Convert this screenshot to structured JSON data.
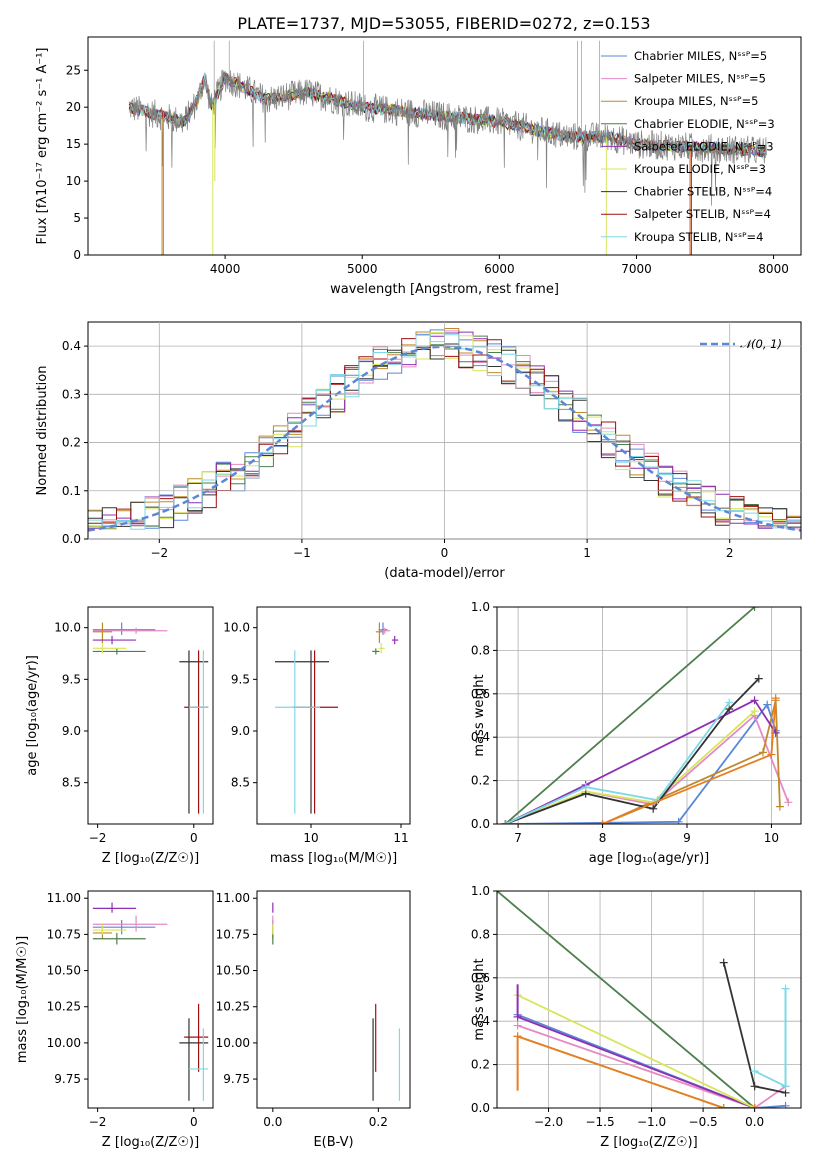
{
  "chart_data": [
    {
      "type": "line",
      "title": "PLATE=1737, MJD=53055, FIBERID=0272, z=0.153",
      "xlabel": "wavelength [Angstrom, rest frame]",
      "ylabel": "Flux [fλ10⁻¹⁷ erg cm⁻² s⁻¹ A⁻¹]",
      "xlim": [
        3000,
        8200
      ],
      "ylim": [
        0,
        29.5
      ],
      "xticks": [
        "4000",
        "5000",
        "6000",
        "7000",
        "8000"
      ],
      "yticks": [
        "0",
        "5",
        "10",
        "15",
        "20",
        "25"
      ],
      "legend_position": "upper right",
      "series": [
        {
          "name": "Chabrier MILES, N_SSP=5",
          "color": "#5b87d9"
        },
        {
          "name": "Salpeter MILES, N_SSP=5",
          "color": "#e58ac4"
        },
        {
          "name": "Kroupa MILES, N_SSP=5",
          "color": "#c08a2c"
        },
        {
          "name": "Chabrier ELODIE, N_SSP=3",
          "color": "#4e7f4e"
        },
        {
          "name": "Salpeter ELODIE, N_SSP=3",
          "color": "#8e2fb3"
        },
        {
          "name": "Kroupa ELODIE, N_SSP=3",
          "color": "#d7e65a"
        },
        {
          "name": "Chabrier STELIB, N_SSP=4",
          "color": "#333333"
        },
        {
          "name": "Salpeter STELIB, N_SSP=4",
          "color": "#a01010"
        },
        {
          "name": "Kroupa STELIB, N_SSP=4",
          "color": "#7fd8e6"
        }
      ],
      "data_color": "#808080",
      "spectrum_knots": [
        [
          3300,
          20
        ],
        [
          3500,
          19
        ],
        [
          3700,
          18
        ],
        [
          3800,
          21
        ],
        [
          3850,
          24
        ],
        [
          3900,
          20
        ],
        [
          4000,
          24
        ],
        [
          4300,
          21
        ],
        [
          4600,
          22
        ],
        [
          5000,
          20
        ],
        [
          5500,
          19
        ],
        [
          6000,
          18
        ],
        [
          6500,
          16
        ],
        [
          6800,
          16
        ],
        [
          7000,
          15
        ],
        [
          7500,
          14.5
        ],
        [
          8000,
          14
        ]
      ]
    },
    {
      "type": "line",
      "xlabel": "(data-model)/error",
      "ylabel": "Normed distribution",
      "xlim": [
        -2.5,
        2.5
      ],
      "ylim": [
        0,
        0.45
      ],
      "xticks": [
        "−2",
        "−1",
        "0",
        "1",
        "2"
      ],
      "yticks": [
        "0.0",
        "0.1",
        "0.2",
        "0.3",
        "0.4"
      ],
      "grid": true,
      "legend": "𝒩(0, 1)",
      "legend_position": "upper right",
      "gaussian_color": "#5b87d9",
      "bin_width": 0.1
    },
    {
      "type": "scatter",
      "xlabel": "Z [log₁₀(Z/Z☉)]",
      "ylabel": "age  [log₁₀(age/yr)]",
      "xlim": [
        -2.2,
        0.4
      ],
      "ylim": [
        8.1,
        10.2
      ],
      "xticks": [
        "−2",
        "0"
      ],
      "yticks": [
        "8.5",
        "9.0",
        "9.5",
        "10.0"
      ],
      "points": [
        {
          "x": -1.5,
          "y": 9.98,
          "xlo": -2.1,
          "xhi": -0.8,
          "ylo": 9.93,
          "yhi": 10.05,
          "c": "#5b87d9"
        },
        {
          "x": -1.2,
          "y": 9.97,
          "xlo": -2.1,
          "xhi": -0.55,
          "ylo": 9.94,
          "yhi": 10.0,
          "c": "#e58ac4"
        },
        {
          "x": -1.9,
          "y": 9.96,
          "xlo": -2.1,
          "xhi": -1.7,
          "ylo": 9.85,
          "yhi": 10.05,
          "c": "#c08a2c"
        },
        {
          "x": -1.6,
          "y": 9.77,
          "xlo": -2.1,
          "xhi": -1.0,
          "ylo": 9.74,
          "yhi": 9.8,
          "c": "#4e7f4e"
        },
        {
          "x": -1.7,
          "y": 9.88,
          "xlo": -2.1,
          "xhi": -1.2,
          "ylo": 9.84,
          "yhi": 9.92,
          "c": "#8e2fb3"
        },
        {
          "x": -1.9,
          "y": 9.8,
          "xlo": -2.1,
          "xhi": -1.4,
          "ylo": 9.75,
          "yhi": 9.85,
          "c": "#d7e65a"
        },
        {
          "x": -0.1,
          "y": 9.67,
          "xlo": -0.3,
          "xhi": 0.3,
          "ylo": 8.2,
          "yhi": 9.78,
          "c": "#333333"
        },
        {
          "x": 0.1,
          "y": 9.23,
          "xlo": -0.2,
          "xhi": 0.3,
          "ylo": 8.2,
          "yhi": 9.78,
          "c": "#a01010"
        },
        {
          "x": 0.2,
          "y": 9.23,
          "xlo": -0.1,
          "xhi": 0.3,
          "ylo": 8.2,
          "yhi": 9.78,
          "c": "#7fd8e6"
        }
      ]
    },
    {
      "type": "scatter",
      "xlabel": "mass [log₁₀(M/M☉)]",
      "ylabel": "",
      "xlim": [
        9.4,
        11.1
      ],
      "ylim": [
        8.1,
        10.2
      ],
      "xticks": [
        "10",
        "11"
      ],
      "yticks": [
        "8.5",
        "9.0",
        "9.5",
        "10.0"
      ],
      "points": [
        {
          "x": 10.8,
          "y": 9.98,
          "xlo": 10.75,
          "xhi": 10.85,
          "ylo": 9.93,
          "yhi": 10.05,
          "c": "#5b87d9"
        },
        {
          "x": 10.82,
          "y": 9.97,
          "xlo": 10.77,
          "xhi": 10.88,
          "ylo": 9.94,
          "yhi": 10.0,
          "c": "#e58ac4"
        },
        {
          "x": 10.76,
          "y": 9.96,
          "xlo": 10.72,
          "xhi": 10.8,
          "ylo": 9.85,
          "yhi": 10.05,
          "c": "#c08a2c"
        },
        {
          "x": 10.72,
          "y": 9.77,
          "xlo": 10.68,
          "xhi": 10.76,
          "ylo": 9.74,
          "yhi": 9.8,
          "c": "#4e7f4e"
        },
        {
          "x": 10.93,
          "y": 9.88,
          "xlo": 10.9,
          "xhi": 10.97,
          "ylo": 9.84,
          "yhi": 9.92,
          "c": "#8e2fb3"
        },
        {
          "x": 10.78,
          "y": 9.8,
          "xlo": 10.75,
          "xhi": 10.82,
          "ylo": 9.75,
          "yhi": 9.85,
          "c": "#d7e65a"
        },
        {
          "x": 10.0,
          "y": 9.67,
          "xlo": 9.6,
          "xhi": 10.2,
          "ylo": 8.2,
          "yhi": 9.78,
          "c": "#333333"
        },
        {
          "x": 10.04,
          "y": 9.23,
          "xlo": 9.8,
          "xhi": 10.3,
          "ylo": 8.2,
          "yhi": 9.78,
          "c": "#a01010"
        },
        {
          "x": 9.82,
          "y": 9.23,
          "xlo": 9.6,
          "xhi": 10.1,
          "ylo": 8.2,
          "yhi": 9.78,
          "c": "#7fd8e6"
        }
      ]
    },
    {
      "type": "line",
      "xlabel": "age  [log₁₀(age/yr)]",
      "ylabel": "mass weight",
      "xlim": [
        6.75,
        10.35
      ],
      "ylim": [
        0,
        1.0
      ],
      "xticks": [
        "7",
        "8",
        "9",
        "10"
      ],
      "yticks": [
        "0.0",
        "0.2",
        "0.4",
        "0.6",
        "0.8",
        "1.0"
      ],
      "grid": true,
      "series": [
        {
          "c": "#4e7f4e",
          "x": [
            6.85,
            9.8
          ],
          "y": [
            0.0,
            1.0
          ]
        },
        {
          "c": "#5b87d9",
          "x": [
            6.85,
            8.9,
            9.95,
            10.05
          ],
          "y": [
            0.0,
            0.01,
            0.55,
            0.43
          ]
        },
        {
          "c": "#e58ac4",
          "x": [
            6.85,
            7.8,
            8.6,
            9.8,
            10.2
          ],
          "y": [
            0.0,
            0.15,
            0.09,
            0.5,
            0.1
          ]
        },
        {
          "c": "#c08a2c",
          "x": [
            6.85,
            8.0,
            9.9,
            10.05,
            10.1
          ],
          "y": [
            0.0,
            0.0,
            0.33,
            0.57,
            0.08
          ]
        },
        {
          "c": "#8e2fb3",
          "x": [
            6.85,
            7.8,
            9.8,
            10.05
          ],
          "y": [
            0.0,
            0.18,
            0.57,
            0.42
          ]
        },
        {
          "c": "#d7e65a",
          "x": [
            6.85,
            7.8,
            8.6,
            9.8
          ],
          "y": [
            0.0,
            0.15,
            0.1,
            0.52
          ]
        },
        {
          "c": "#333333",
          "x": [
            6.85,
            7.8,
            8.6,
            9.5,
            9.85
          ],
          "y": [
            0.0,
            0.14,
            0.07,
            0.53,
            0.67
          ]
        },
        {
          "c": "#7fd8e6",
          "x": [
            6.85,
            7.8,
            8.65,
            9.5
          ],
          "y": [
            0.0,
            0.17,
            0.11,
            0.56
          ]
        },
        {
          "c": "#e67e22",
          "x": [
            6.85,
            8.0,
            10.0,
            10.05
          ],
          "y": [
            0.0,
            0.0,
            0.32,
            0.58
          ]
        }
      ]
    },
    {
      "type": "scatter",
      "xlabel": "Z [log₁₀(Z/Z☉)]",
      "ylabel": "mass [log₁₀(M/M☉)]",
      "xlim": [
        -2.2,
        0.4
      ],
      "ylim": [
        9.55,
        11.05
      ],
      "xticks": [
        "−2",
        "0"
      ],
      "yticks": [
        "9.75",
        "10.00",
        "10.25",
        "10.50",
        "10.75",
        "11.00"
      ],
      "points": [
        {
          "x": -1.5,
          "y": 10.8,
          "xlo": -2.1,
          "xhi": -0.8,
          "ylo": 10.75,
          "yhi": 10.85,
          "c": "#5b87d9"
        },
        {
          "x": -1.2,
          "y": 10.82,
          "xlo": -2.1,
          "xhi": -0.55,
          "ylo": 10.77,
          "yhi": 10.88,
          "c": "#e58ac4"
        },
        {
          "x": -1.9,
          "y": 10.76,
          "xlo": -2.1,
          "xhi": -1.7,
          "ylo": 10.72,
          "yhi": 10.8,
          "c": "#c08a2c"
        },
        {
          "x": -1.6,
          "y": 10.72,
          "xlo": -2.1,
          "xhi": -1.0,
          "ylo": 10.68,
          "yhi": 10.76,
          "c": "#4e7f4e"
        },
        {
          "x": -1.7,
          "y": 10.93,
          "xlo": -2.1,
          "xhi": -1.2,
          "ylo": 10.9,
          "yhi": 10.97,
          "c": "#8e2fb3"
        },
        {
          "x": -1.9,
          "y": 10.78,
          "xlo": -2.1,
          "xhi": -1.4,
          "ylo": 10.75,
          "yhi": 10.82,
          "c": "#d7e65a"
        },
        {
          "x": -0.1,
          "y": 10.0,
          "xlo": -0.3,
          "xhi": 0.3,
          "ylo": 9.6,
          "yhi": 10.17,
          "c": "#333333"
        },
        {
          "x": 0.1,
          "y": 10.04,
          "xlo": -0.2,
          "xhi": 0.3,
          "ylo": 9.8,
          "yhi": 10.27,
          "c": "#a01010"
        },
        {
          "x": 0.2,
          "y": 9.82,
          "xlo": -0.1,
          "xhi": 0.3,
          "ylo": 9.6,
          "yhi": 10.1,
          "c": "#7fd8e6"
        }
      ]
    },
    {
      "type": "scatter",
      "xlabel": "E(B-V)",
      "ylabel": "",
      "xlim": [
        -0.03,
        0.26
      ],
      "ylim": [
        9.55,
        11.05
      ],
      "xticks": [
        "0.0",
        "0.2"
      ],
      "yticks": [
        "9.75",
        "10.00",
        "10.25",
        "10.50",
        "10.75",
        "11.00"
      ],
      "points": [
        {
          "x": 0.0,
          "y": 10.8,
          "ylo": 10.75,
          "yhi": 10.85,
          "c": "#5b87d9"
        },
        {
          "x": 0.0,
          "y": 10.82,
          "ylo": 10.77,
          "yhi": 10.88,
          "c": "#e58ac4"
        },
        {
          "x": 0.0,
          "y": 10.76,
          "ylo": 10.72,
          "yhi": 10.8,
          "c": "#c08a2c"
        },
        {
          "x": 0.0,
          "y": 10.72,
          "ylo": 10.68,
          "yhi": 10.76,
          "c": "#4e7f4e"
        },
        {
          "x": 0.0,
          "y": 10.93,
          "ylo": 10.9,
          "yhi": 10.97,
          "c": "#8e2fb3"
        },
        {
          "x": 0.0,
          "y": 10.78,
          "ylo": 10.75,
          "yhi": 10.82,
          "c": "#d7e65a"
        },
        {
          "x": 0.19,
          "y": 10.0,
          "ylo": 9.6,
          "yhi": 10.17,
          "c": "#333333"
        },
        {
          "x": 0.195,
          "y": 10.04,
          "ylo": 9.8,
          "yhi": 10.27,
          "c": "#a01010"
        },
        {
          "x": 0.24,
          "y": 9.82,
          "ylo": 9.6,
          "yhi": 10.1,
          "c": "#7fd8e6"
        }
      ]
    },
    {
      "type": "line",
      "xlabel": "Z [log₁₀(Z/Z☉)]",
      "ylabel": "mass weight",
      "xlim": [
        -2.5,
        0.45
      ],
      "ylim": [
        0,
        1.0
      ],
      "xticks": [
        "−2.0",
        "−1.5",
        "−1.0",
        "−0.5",
        "0.0"
      ],
      "yticks": [
        "0.0",
        "0.2",
        "0.4",
        "0.6",
        "0.8",
        "1.0"
      ],
      "grid": true,
      "series": [
        {
          "c": "#4e7f4e",
          "x": [
            -2.5,
            0.0
          ],
          "y": [
            1.0,
            0.0
          ]
        },
        {
          "c": "#5b87d9",
          "x": [
            -2.3,
            0.0,
            0.3
          ],
          "y": [
            0.43,
            0.0,
            0.01
          ]
        },
        {
          "c": "#e58ac4",
          "x": [
            -2.3,
            0.0,
            0.3
          ],
          "y": [
            0.38,
            0.0,
            0.1
          ]
        },
        {
          "c": "#c08a2c",
          "x": [
            -2.3,
            -0.3,
            0.0
          ],
          "y": [
            0.33,
            0.0,
            0.0
          ]
        },
        {
          "c": "#8e2fb3",
          "x": [
            -2.3,
            0.0
          ],
          "y": [
            0.42,
            0.0
          ]
        },
        {
          "c": "#d7e65a",
          "x": [
            -2.3,
            0.0
          ],
          "y": [
            0.52,
            0.0
          ]
        },
        {
          "c": "#333333",
          "x": [
            -0.3,
            0.0,
            0.3
          ],
          "y": [
            0.67,
            0.1,
            0.07
          ]
        },
        {
          "c": "#7fd8e6",
          "x": [
            0.0,
            0.3,
            0.3
          ],
          "y": [
            0.17,
            0.1,
            0.55
          ]
        },
        {
          "c": "#e67e22",
          "x": [
            -2.3,
            -0.3,
            0.0
          ],
          "y": [
            0.33,
            0.0,
            0.0
          ]
        }
      ],
      "vertical_stacks": [
        {
          "c": "#8e2fb3",
          "x": -2.3,
          "y": [
            0.42,
            0.57
          ]
        },
        {
          "c": "#e67e22",
          "x": -2.3,
          "y": [
            0.08,
            0.33
          ]
        },
        {
          "c": "#7fd8e6",
          "x": 0.3,
          "y": [
            0.1,
            0.55
          ]
        }
      ]
    }
  ]
}
